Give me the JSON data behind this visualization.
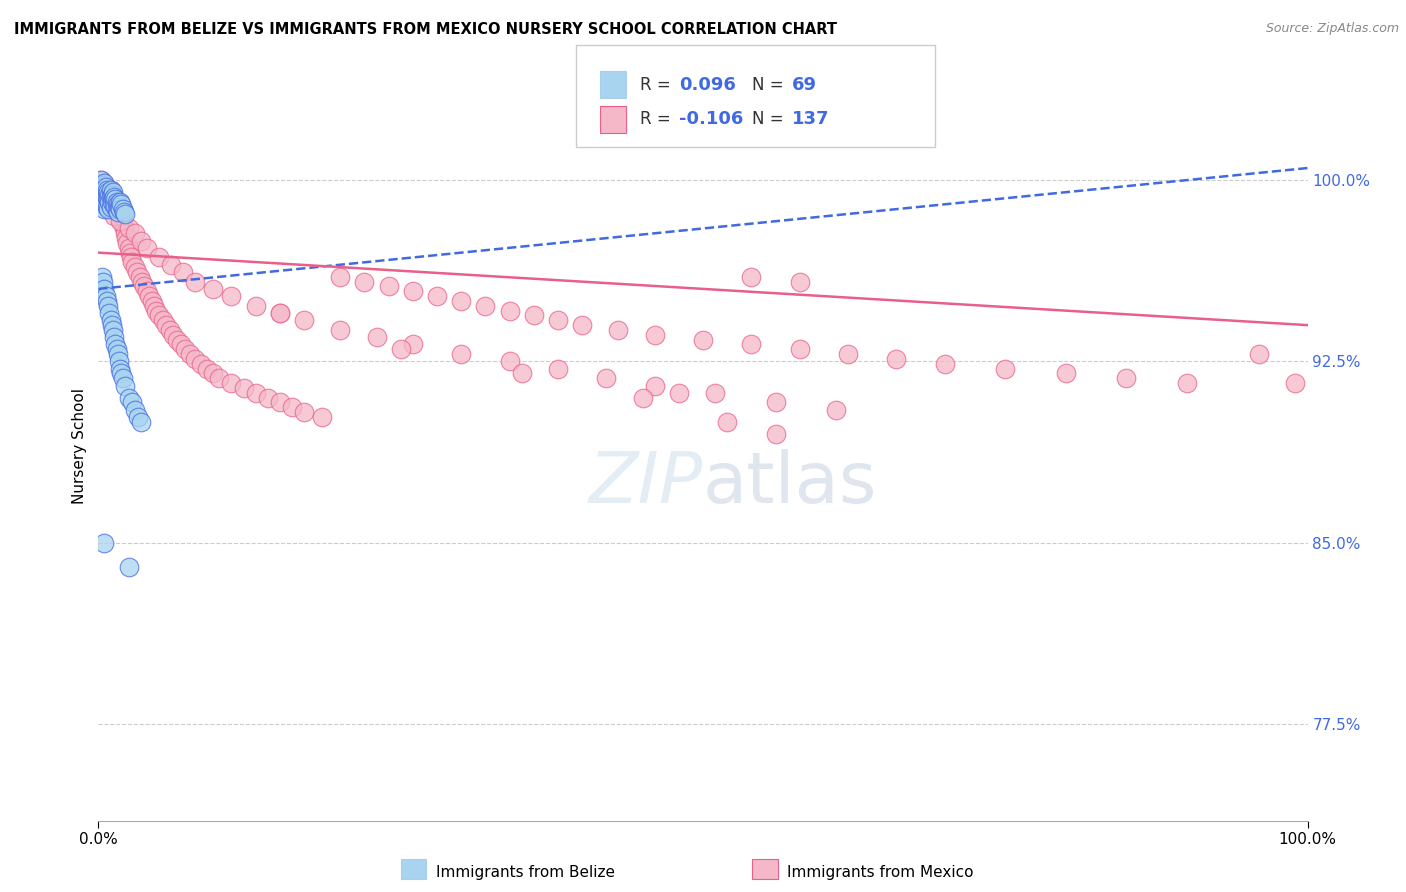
{
  "title": "IMMIGRANTS FROM BELIZE VS IMMIGRANTS FROM MEXICO NURSERY SCHOOL CORRELATION CHART",
  "source": "Source: ZipAtlas.com",
  "ylabel": "Nursery School",
  "yticks": [
    0.775,
    0.85,
    0.925,
    1.0
  ],
  "ytick_labels": [
    "77.5%",
    "85.0%",
    "92.5%",
    "100.0%"
  ],
  "xlim": [
    0.0,
    1.0
  ],
  "ylim": [
    0.735,
    1.045
  ],
  "legend_R_belize": "0.096",
  "legend_N_belize": "69",
  "legend_R_mexico": "-0.106",
  "legend_N_mexico": "137",
  "color_belize": "#a8d4f0",
  "color_mexico": "#f5b8c8",
  "trendline_color_belize": "#4169E1",
  "trendline_color_mexico": "#e8608a",
  "background_color": "#FFFFFF",
  "belize_trend_x0": 0.0,
  "belize_trend_y0": 0.955,
  "belize_trend_x1": 1.0,
  "belize_trend_y1": 1.005,
  "mexico_trend_x0": 0.0,
  "mexico_trend_y0": 0.97,
  "mexico_trend_x1": 1.0,
  "mexico_trend_y1": 0.94,
  "belize_x": [
    0.002,
    0.003,
    0.003,
    0.004,
    0.004,
    0.004,
    0.005,
    0.005,
    0.005,
    0.005,
    0.006,
    0.006,
    0.006,
    0.007,
    0.007,
    0.007,
    0.008,
    0.008,
    0.008,
    0.009,
    0.009,
    0.01,
    0.01,
    0.01,
    0.011,
    0.011,
    0.012,
    0.012,
    0.013,
    0.013,
    0.014,
    0.014,
    0.015,
    0.015,
    0.016,
    0.016,
    0.017,
    0.018,
    0.018,
    0.019,
    0.02,
    0.021,
    0.022,
    0.003,
    0.004,
    0.005,
    0.006,
    0.007,
    0.008,
    0.009,
    0.01,
    0.011,
    0.012,
    0.013,
    0.014,
    0.015,
    0.016,
    0.017,
    0.018,
    0.019,
    0.02,
    0.022,
    0.025,
    0.028,
    0.03,
    0.033,
    0.035,
    0.005,
    0.025
  ],
  "belize_y": [
    1.0,
    0.998,
    0.995,
    0.997,
    0.993,
    0.99,
    0.999,
    0.996,
    0.992,
    0.988,
    0.997,
    0.994,
    0.99,
    0.996,
    0.993,
    0.989,
    0.995,
    0.992,
    0.988,
    0.994,
    0.991,
    0.996,
    0.993,
    0.989,
    0.994,
    0.991,
    0.995,
    0.992,
    0.993,
    0.99,
    0.992,
    0.989,
    0.991,
    0.988,
    0.99,
    0.987,
    0.989,
    0.991,
    0.988,
    0.99,
    0.988,
    0.987,
    0.986,
    0.96,
    0.958,
    0.955,
    0.952,
    0.95,
    0.948,
    0.945,
    0.942,
    0.94,
    0.938,
    0.935,
    0.932,
    0.93,
    0.928,
    0.925,
    0.922,
    0.92,
    0.918,
    0.915,
    0.91,
    0.908,
    0.905,
    0.902,
    0.9,
    0.85,
    0.84
  ],
  "mexico_x": [
    0.002,
    0.003,
    0.003,
    0.004,
    0.004,
    0.005,
    0.005,
    0.005,
    0.006,
    0.006,
    0.006,
    0.007,
    0.007,
    0.007,
    0.008,
    0.008,
    0.008,
    0.009,
    0.009,
    0.01,
    0.01,
    0.01,
    0.011,
    0.011,
    0.012,
    0.012,
    0.013,
    0.013,
    0.014,
    0.014,
    0.015,
    0.015,
    0.016,
    0.017,
    0.018,
    0.019,
    0.02,
    0.021,
    0.022,
    0.023,
    0.024,
    0.025,
    0.026,
    0.027,
    0.028,
    0.03,
    0.032,
    0.034,
    0.036,
    0.038,
    0.04,
    0.042,
    0.044,
    0.046,
    0.048,
    0.05,
    0.053,
    0.056,
    0.059,
    0.062,
    0.065,
    0.068,
    0.072,
    0.076,
    0.08,
    0.085,
    0.09,
    0.095,
    0.1,
    0.11,
    0.12,
    0.13,
    0.14,
    0.15,
    0.16,
    0.17,
    0.185,
    0.2,
    0.22,
    0.24,
    0.26,
    0.28,
    0.3,
    0.32,
    0.34,
    0.36,
    0.38,
    0.4,
    0.43,
    0.46,
    0.5,
    0.54,
    0.58,
    0.62,
    0.66,
    0.7,
    0.75,
    0.8,
    0.85,
    0.9,
    0.013,
    0.018,
    0.025,
    0.03,
    0.035,
    0.04,
    0.05,
    0.06,
    0.07,
    0.08,
    0.095,
    0.11,
    0.13,
    0.15,
    0.17,
    0.2,
    0.23,
    0.26,
    0.3,
    0.34,
    0.38,
    0.42,
    0.46,
    0.51,
    0.56,
    0.61,
    0.54,
    0.58,
    0.48,
    0.96,
    0.99,
    0.52,
    0.56,
    0.45,
    0.35,
    0.25,
    0.15
  ],
  "mexico_y": [
    1.0,
    0.998,
    0.996,
    0.998,
    0.995,
    0.999,
    0.996,
    0.993,
    0.997,
    0.994,
    0.991,
    0.996,
    0.993,
    0.99,
    0.995,
    0.992,
    0.989,
    0.994,
    0.991,
    0.996,
    0.993,
    0.99,
    0.994,
    0.991,
    0.993,
    0.99,
    0.992,
    0.989,
    0.991,
    0.988,
    0.99,
    0.987,
    0.988,
    0.986,
    0.985,
    0.983,
    0.982,
    0.98,
    0.978,
    0.976,
    0.974,
    0.972,
    0.97,
    0.968,
    0.966,
    0.964,
    0.962,
    0.96,
    0.958,
    0.956,
    0.954,
    0.952,
    0.95,
    0.948,
    0.946,
    0.944,
    0.942,
    0.94,
    0.938,
    0.936,
    0.934,
    0.932,
    0.93,
    0.928,
    0.926,
    0.924,
    0.922,
    0.92,
    0.918,
    0.916,
    0.914,
    0.912,
    0.91,
    0.908,
    0.906,
    0.904,
    0.902,
    0.96,
    0.958,
    0.956,
    0.954,
    0.952,
    0.95,
    0.948,
    0.946,
    0.944,
    0.942,
    0.94,
    0.938,
    0.936,
    0.934,
    0.932,
    0.93,
    0.928,
    0.926,
    0.924,
    0.922,
    0.92,
    0.918,
    0.916,
    0.985,
    0.983,
    0.98,
    0.978,
    0.975,
    0.972,
    0.968,
    0.965,
    0.962,
    0.958,
    0.955,
    0.952,
    0.948,
    0.945,
    0.942,
    0.938,
    0.935,
    0.932,
    0.928,
    0.925,
    0.922,
    0.918,
    0.915,
    0.912,
    0.908,
    0.905,
    0.96,
    0.958,
    0.912,
    0.928,
    0.916,
    0.9,
    0.895,
    0.91,
    0.92,
    0.93,
    0.945
  ]
}
